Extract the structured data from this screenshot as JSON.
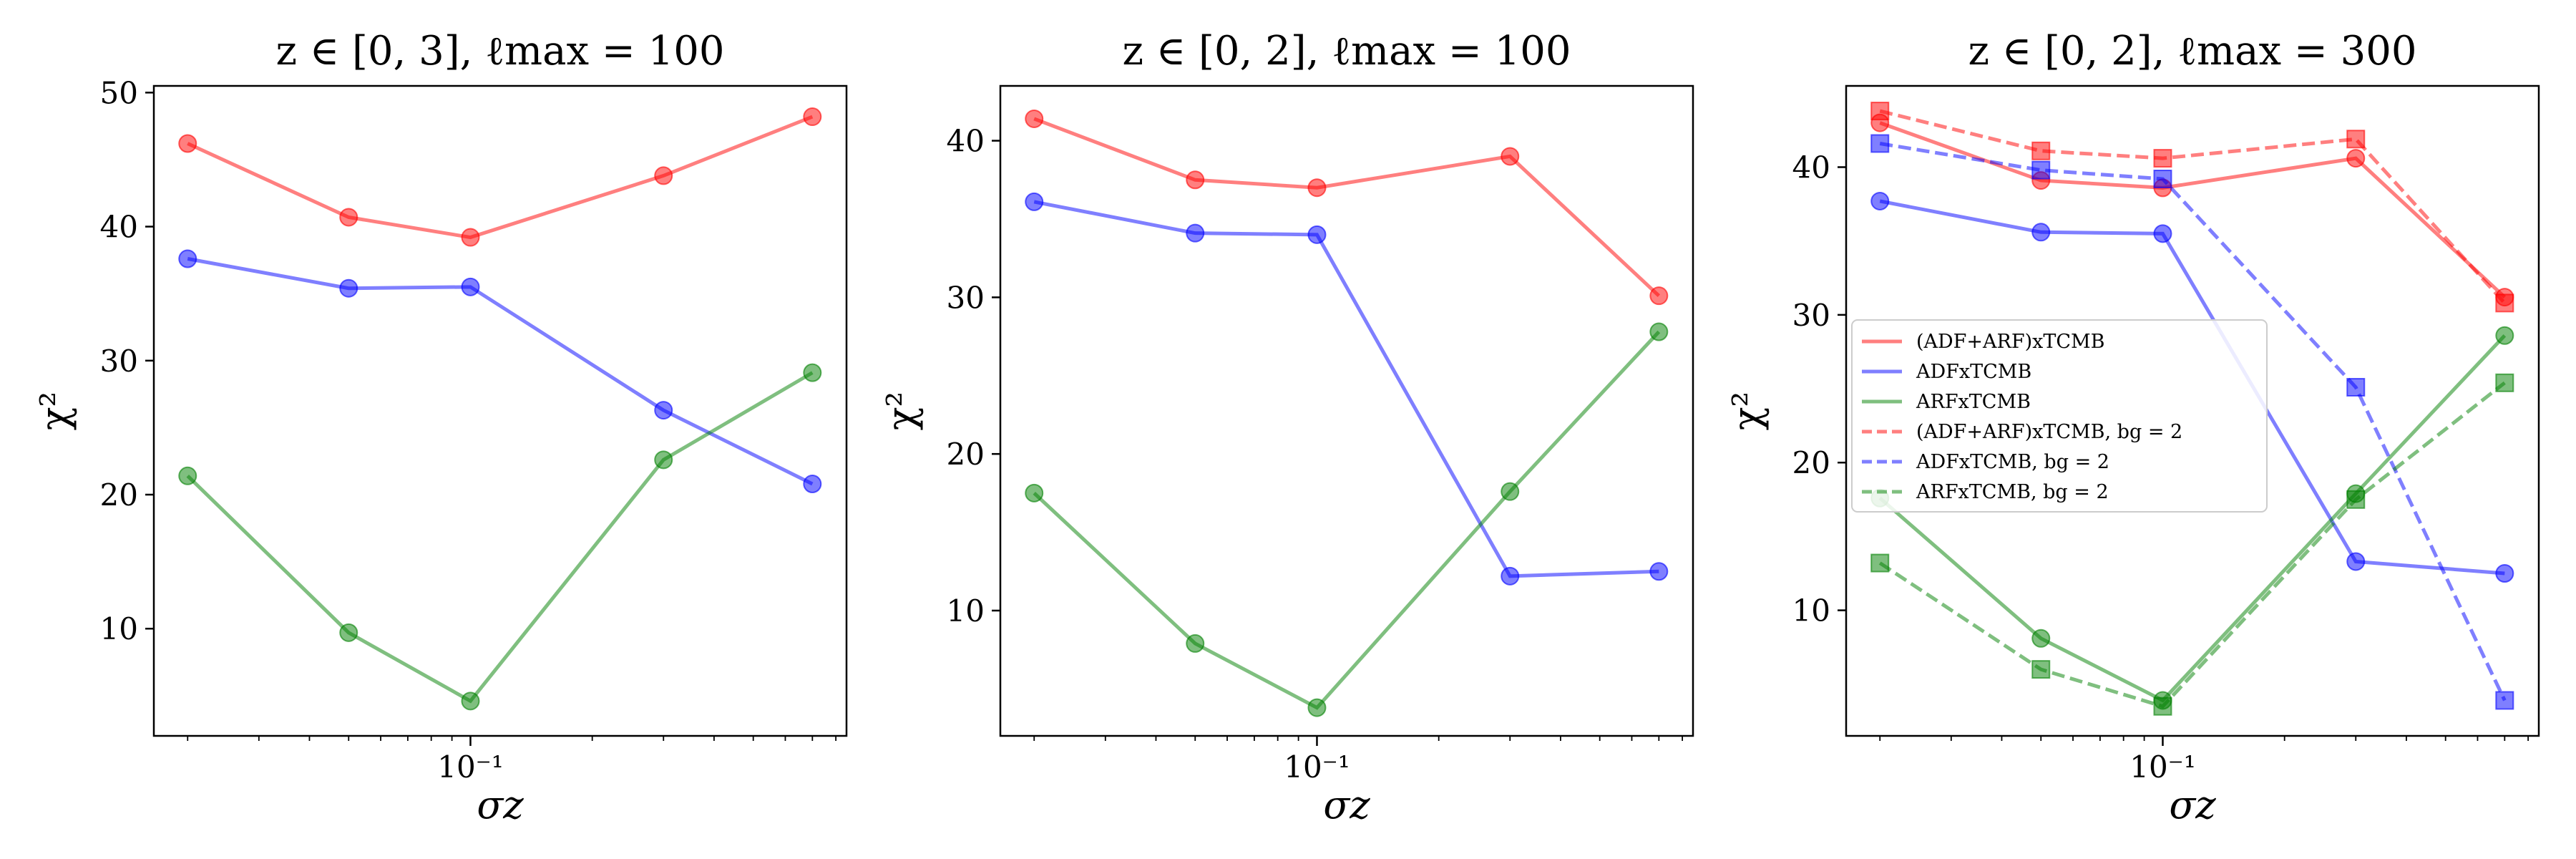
{
  "chart_data": [
    {
      "type": "line",
      "title": "z ∈ [0, 3], ℓmax = 100",
      "xlabel": "σz",
      "ylabel": "χ²",
      "xscale": "log",
      "xlim": [
        0.0165,
        0.85
      ],
      "ylim": [
        2,
        50.5
      ],
      "yticks": [
        10,
        20,
        30,
        40,
        50
      ],
      "xticks": [
        {
          "value": 0.1,
          "label": "10⁻¹"
        }
      ],
      "x": [
        0.02,
        0.05,
        0.1,
        0.3,
        0.7
      ],
      "series": [
        {
          "name": "(ADF+ARF)xTCMB",
          "color": "#ff0000",
          "linestyle": "solid",
          "marker": "circle",
          "values": [
            46.2,
            40.7,
            39.2,
            43.8,
            48.2
          ]
        },
        {
          "name": "ADFxTCMB",
          "color": "#0000ff",
          "linestyle": "solid",
          "marker": "circle",
          "values": [
            37.6,
            35.4,
            35.5,
            26.3,
            20.8
          ]
        },
        {
          "name": "ARFxTCMB",
          "color": "#008000",
          "linestyle": "solid",
          "marker": "circle",
          "values": [
            21.4,
            9.7,
            4.6,
            22.6,
            29.1
          ]
        }
      ]
    },
    {
      "type": "line",
      "title": "z ∈ [0, 2], ℓmax = 100",
      "xlabel": "σz",
      "ylabel": "χ²",
      "xscale": "log",
      "xlim": [
        0.0165,
        0.85
      ],
      "ylim": [
        2,
        43.5
      ],
      "yticks": [
        10,
        20,
        30,
        40
      ],
      "xticks": [
        {
          "value": 0.1,
          "label": "10⁻¹"
        }
      ],
      "x": [
        0.02,
        0.05,
        0.1,
        0.3,
        0.7
      ],
      "series": [
        {
          "name": "(ADF+ARF)xTCMB",
          "color": "#ff0000",
          "linestyle": "solid",
          "marker": "circle",
          "values": [
            41.4,
            37.5,
            37.0,
            39.0,
            30.1
          ]
        },
        {
          "name": "ADFxTCMB",
          "color": "#0000ff",
          "linestyle": "solid",
          "marker": "circle",
          "values": [
            36.1,
            34.1,
            34.0,
            12.2,
            12.5
          ]
        },
        {
          "name": "ARFxTCMB",
          "color": "#008000",
          "linestyle": "solid",
          "marker": "circle",
          "values": [
            17.5,
            7.9,
            3.8,
            17.6,
            27.8
          ]
        }
      ]
    },
    {
      "type": "line",
      "title": "z ∈ [0, 2], ℓmax = 300",
      "xlabel": "σz",
      "ylabel": "χ²",
      "xscale": "log",
      "xlim": [
        0.0165,
        0.85
      ],
      "ylim": [
        1.5,
        45.5
      ],
      "yticks": [
        10,
        20,
        30,
        40
      ],
      "xticks": [
        {
          "value": 0.1,
          "label": "10⁻¹"
        }
      ],
      "x": [
        0.02,
        0.05,
        0.1,
        0.3,
        0.7
      ],
      "legend": "center-left",
      "series": [
        {
          "name": "(ADF+ARF)xTCMB",
          "color": "#ff0000",
          "linestyle": "solid",
          "marker": "circle",
          "values": [
            43.0,
            39.1,
            38.6,
            40.6,
            31.2
          ]
        },
        {
          "name": "ADFxTCMB",
          "color": "#0000ff",
          "linestyle": "solid",
          "marker": "circle",
          "values": [
            37.7,
            35.6,
            35.5,
            13.3,
            12.5
          ]
        },
        {
          "name": "ARFxTCMB",
          "color": "#008000",
          "linestyle": "solid",
          "marker": "circle",
          "values": [
            17.6,
            8.1,
            3.9,
            17.9,
            28.6
          ]
        },
        {
          "name": "(ADF+ARF)xTCMB, bg = 2",
          "color": "#ff0000",
          "linestyle": "dashed",
          "marker": "square",
          "values": [
            43.8,
            41.1,
            40.6,
            41.9,
            30.8
          ]
        },
        {
          "name": "ADFxTCMB, bg = 2",
          "color": "#0000ff",
          "linestyle": "dashed",
          "marker": "square",
          "values": [
            41.6,
            39.8,
            39.2,
            25.1,
            3.9
          ]
        },
        {
          "name": "ARFxTCMB, bg = 2",
          "color": "#008000",
          "linestyle": "dashed",
          "marker": "square",
          "values": [
            13.2,
            6.0,
            3.5,
            17.5,
            25.4
          ]
        }
      ]
    }
  ]
}
